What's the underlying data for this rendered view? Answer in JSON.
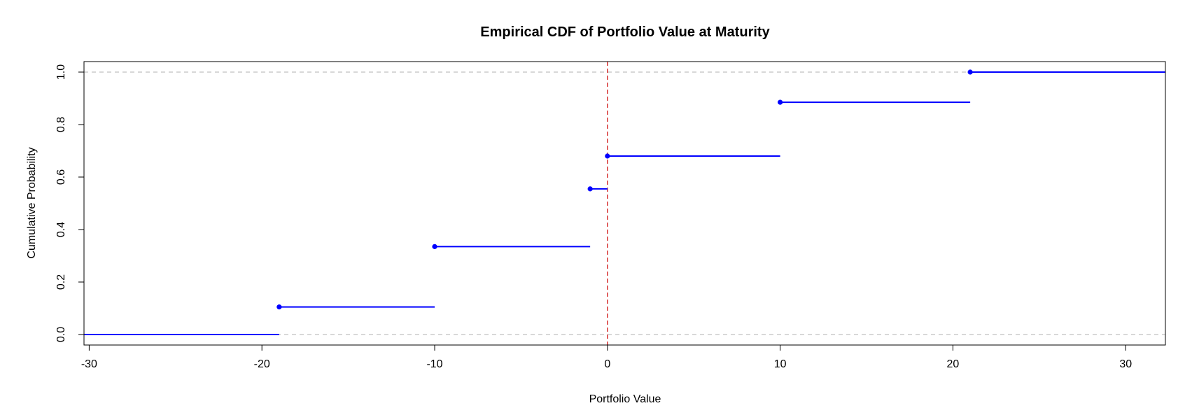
{
  "chart_data": {
    "type": "line",
    "title": "Empirical CDF of Portfolio Value at Maturity",
    "xlabel": "Portfolio Value",
    "ylabel": "Cumulative Probability",
    "xlim": [
      -30.3,
      32.3
    ],
    "ylim": [
      -0.04,
      1.04
    ],
    "x_ticks": [
      -30,
      -20,
      -10,
      0,
      10,
      20,
      30
    ],
    "y_ticks": [
      0.0,
      0.2,
      0.4,
      0.6,
      0.8,
      1.0
    ],
    "x_tick_labels": [
      "-30",
      "-20",
      "-10",
      "0",
      "10",
      "20",
      "30"
    ],
    "y_tick_labels": [
      "0.0",
      "0.2",
      "0.4",
      "0.6",
      "0.8",
      "1.0"
    ],
    "grid": false,
    "legend": "none",
    "series": [
      {
        "style": "step",
        "color": "#0000ff",
        "x": [
          -19,
          -10,
          -1,
          0,
          10,
          21
        ],
        "y": [
          0.105,
          0.335,
          0.555,
          0.68,
          0.885,
          1.0
        ],
        "left_level": 0.0
      }
    ],
    "reference_lines": [
      {
        "orientation": "horizontal",
        "value": 0.0,
        "color": "#c0c0c0",
        "style": "dashed"
      },
      {
        "orientation": "horizontal",
        "value": 1.0,
        "color": "#c0c0c0",
        "style": "dashed"
      },
      {
        "orientation": "vertical",
        "value": 0,
        "color": "#cc0000",
        "style": "dashed"
      }
    ]
  }
}
